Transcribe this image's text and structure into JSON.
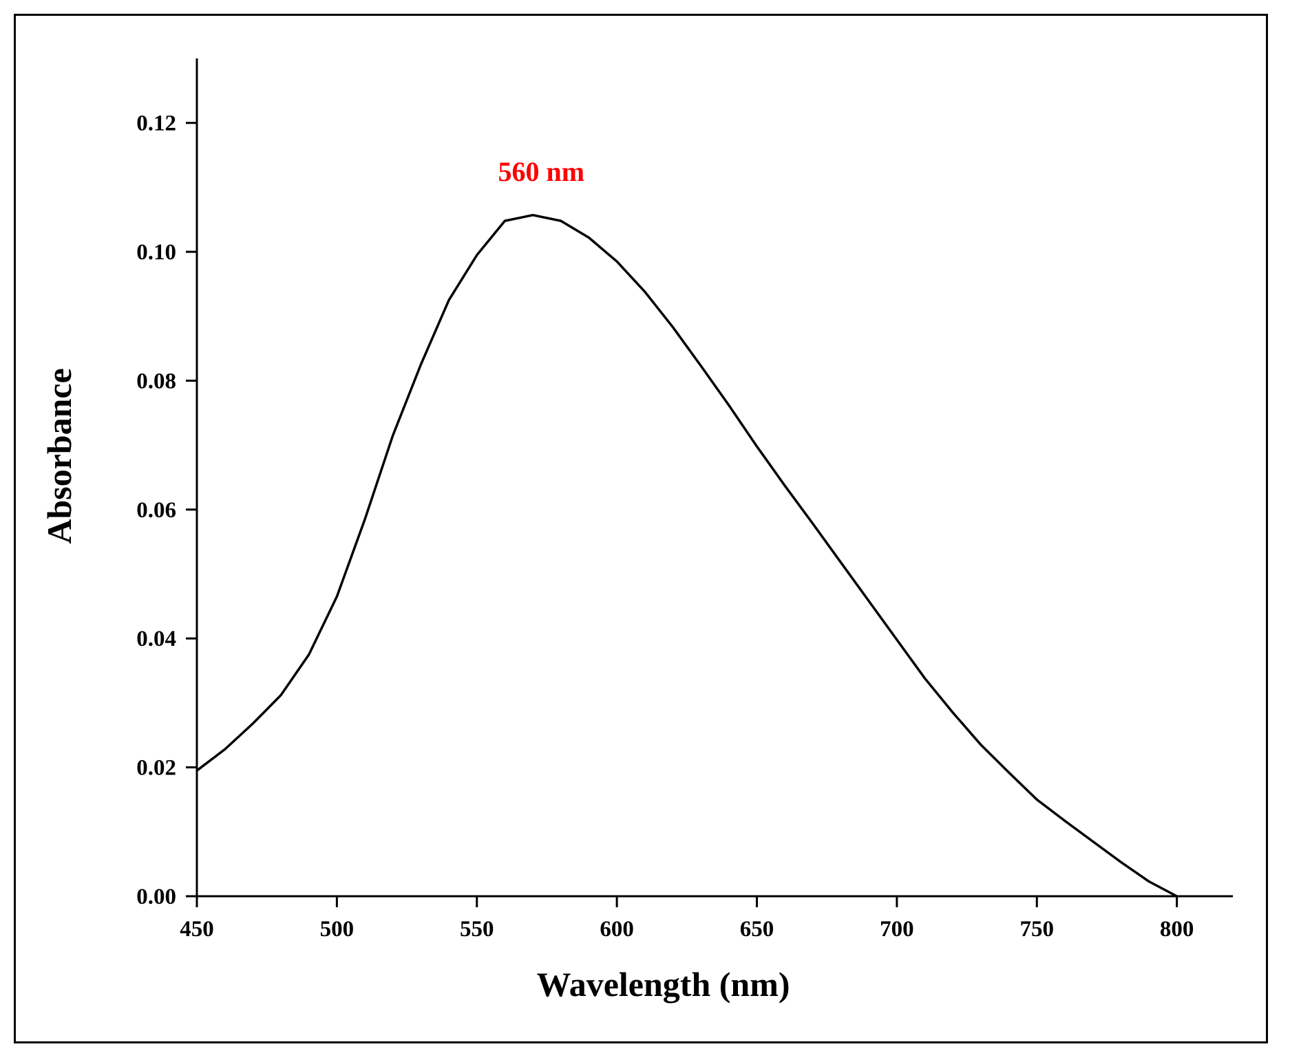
{
  "chart_data": {
    "type": "line",
    "title": "",
    "xlabel": "Wavelength (nm)",
    "ylabel": "Absorbance",
    "xlim": [
      450,
      820
    ],
    "ylim": [
      0,
      0.13
    ],
    "xticks": [
      450,
      500,
      550,
      600,
      650,
      700,
      750,
      800
    ],
    "xtick_labels": [
      "450",
      "500",
      "550",
      "600",
      "650",
      "700",
      "750",
      "800"
    ],
    "yticks": [
      0.0,
      0.02,
      0.04,
      0.06,
      0.08,
      0.1,
      0.12
    ],
    "ytick_labels": [
      "0.00",
      "0.02",
      "0.04",
      "0.06",
      "0.08",
      "0.10",
      "0.12"
    ],
    "grid": false,
    "line_color": "#000000",
    "annotation": {
      "text": "560 nm",
      "x": 573,
      "y": 0.111,
      "color": "#ff0000"
    },
    "series": [
      {
        "name": "Absorbance",
        "x": [
          450,
          460,
          470,
          480,
          490,
          500,
          510,
          520,
          530,
          540,
          550,
          560,
          570,
          580,
          590,
          600,
          610,
          620,
          630,
          640,
          650,
          660,
          670,
          680,
          690,
          700,
          710,
          720,
          730,
          740,
          750,
          760,
          770,
          780,
          790,
          800
        ],
        "values": [
          0.0195,
          0.0228,
          0.0268,
          0.0312,
          0.0375,
          0.0465,
          0.0585,
          0.0715,
          0.0825,
          0.0925,
          0.0995,
          0.1048,
          0.1057,
          0.1048,
          0.1022,
          0.0985,
          0.0938,
          0.0883,
          0.0823,
          0.0762,
          0.0698,
          0.0637,
          0.0578,
          0.0518,
          0.0458,
          0.0398,
          0.0338,
          0.0285,
          0.0235,
          0.0192,
          0.015,
          0.0117,
          0.0085,
          0.0053,
          0.0023,
          0.0
        ]
      }
    ]
  }
}
